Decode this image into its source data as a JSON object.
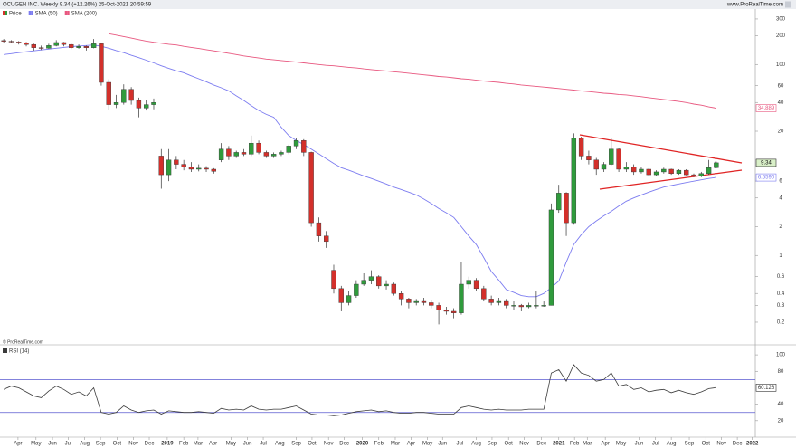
{
  "chart_data": {
    "type": "candlestick",
    "title": "OCUGEN INC. Weekly 9.34 (+12.26%) 25-Oct-2021 20:59:59",
    "source": "www.ProRealTime.com",
    "copyright": "© ProRealTime.com",
    "log_scale": true,
    "grid": false,
    "xlim": [
      -0.5,
      100.2
    ],
    "xticks": [
      {
        "value": 1.9,
        "label": "Apr"
      },
      {
        "value": 4.3,
        "label": "May"
      },
      {
        "value": 6.5,
        "label": "Jun"
      },
      {
        "value": 8.6,
        "label": "Jul"
      },
      {
        "value": 10.8,
        "label": "Aug"
      },
      {
        "value": 12.9,
        "label": "Sep"
      },
      {
        "value": 15.1,
        "label": "Oct"
      },
      {
        "value": 17.3,
        "label": "Nov"
      },
      {
        "value": 19.4,
        "label": "Dec"
      },
      {
        "value": 21.8,
        "label": "2019"
      },
      {
        "value": 24.0,
        "label": "Feb"
      },
      {
        "value": 25.9,
        "label": "Mar"
      },
      {
        "value": 27.9,
        "label": "Apr"
      },
      {
        "value": 30.3,
        "label": "May"
      },
      {
        "value": 32.5,
        "label": "Jun"
      },
      {
        "value": 34.6,
        "label": "Jul"
      },
      {
        "value": 36.8,
        "label": "Aug"
      },
      {
        "value": 39.0,
        "label": "Sep"
      },
      {
        "value": 41.1,
        "label": "Oct"
      },
      {
        "value": 43.3,
        "label": "Nov"
      },
      {
        "value": 45.4,
        "label": "Dec"
      },
      {
        "value": 47.8,
        "label": "2020"
      },
      {
        "value": 50.0,
        "label": "Feb"
      },
      {
        "value": 52.2,
        "label": "Mar"
      },
      {
        "value": 54.3,
        "label": "Apr"
      },
      {
        "value": 56.5,
        "label": "May"
      },
      {
        "value": 58.5,
        "label": "Jun"
      },
      {
        "value": 60.8,
        "label": "Jul"
      },
      {
        "value": 63.0,
        "label": "Aug"
      },
      {
        "value": 65.1,
        "label": "Sep"
      },
      {
        "value": 67.3,
        "label": "Oct"
      },
      {
        "value": 69.4,
        "label": "Nov"
      },
      {
        "value": 71.7,
        "label": "Dec"
      },
      {
        "value": 74.0,
        "label": "2021"
      },
      {
        "value": 76.1,
        "label": "Feb"
      },
      {
        "value": 77.8,
        "label": "Mar"
      },
      {
        "value": 80.2,
        "label": "Apr"
      },
      {
        "value": 82.3,
        "label": "May"
      },
      {
        "value": 84.7,
        "label": "Jun"
      },
      {
        "value": 86.9,
        "label": "Jul"
      },
      {
        "value": 89.0,
        "label": "Aug"
      },
      {
        "value": 91.4,
        "label": "Sep"
      },
      {
        "value": 93.6,
        "label": "Oct"
      },
      {
        "value": 95.7,
        "label": "Nov"
      },
      {
        "value": 97.8,
        "label": "Dec"
      },
      {
        "value": 99.8,
        "label": "2022"
      }
    ],
    "ylim": [
      0.121,
      313
    ],
    "yticks": [
      300,
      200,
      100,
      60,
      40,
      20,
      6,
      4,
      2,
      1,
      0.6,
      0.4,
      0.3,
      0.2
    ],
    "candles": {
      "name": "Price",
      "up_color": "#2f9b3c",
      "down_color": "#d3302b",
      "open": [
        178,
        175,
        172,
        168,
        162,
        150,
        148,
        158,
        170,
        162,
        150,
        155,
        150,
        165,
        65,
        38,
        40,
        55,
        42,
        35,
        38,
        11,
        7,
        10,
        9,
        8.5,
        8,
        8.2,
        8,
        10,
        13,
        11,
        12,
        11.5,
        15,
        12,
        11,
        11.5,
        12,
        14,
        16,
        12,
        2.2,
        1.6,
        0.7,
        0.45,
        0.32,
        0.38,
        0.5,
        0.55,
        0.6,
        0.48,
        0.5,
        0.4,
        0.35,
        0.32,
        0.33,
        0.32,
        0.3,
        0.27,
        0.26,
        0.25,
        0.5,
        0.55,
        0.45,
        0.35,
        0.32,
        0.33,
        0.3,
        0.3,
        0.29,
        0.3,
        0.3,
        0.3,
        3.0,
        4.5,
        2.2,
        17,
        11,
        10,
        8,
        9,
        13,
        8,
        8.5,
        7.5,
        8,
        7,
        7.5,
        8,
        7.2,
        7.8,
        7,
        6.8,
        7.2,
        8.3
      ],
      "high": [
        185,
        180,
        176,
        172,
        165,
        158,
        165,
        180,
        172,
        165,
        162,
        158,
        185,
        170,
        70,
        48,
        62,
        58,
        45,
        42,
        44,
        13,
        13,
        11,
        10,
        9.5,
        9,
        8.6,
        8.2,
        15,
        14,
        12.5,
        13,
        18,
        16,
        12.5,
        12,
        12.5,
        14.5,
        17,
        16.5,
        12.2,
        2.5,
        1.8,
        0.8,
        0.48,
        0.42,
        0.55,
        0.65,
        0.7,
        0.62,
        0.55,
        0.52,
        0.42,
        0.36,
        0.35,
        0.36,
        0.34,
        0.32,
        0.29,
        0.28,
        0.85,
        0.6,
        0.58,
        0.48,
        0.38,
        0.36,
        0.35,
        0.33,
        0.31,
        0.32,
        0.42,
        0.33,
        3.5,
        5.5,
        4.6,
        19,
        17.5,
        12.5,
        10.5,
        9.5,
        17,
        13.5,
        9.5,
        9,
        8.5,
        8.2,
        7.8,
        8.3,
        8.1,
        8,
        8,
        7.2,
        7.5,
        10,
        9.6
      ],
      "low": [
        170,
        168,
        162,
        155,
        140,
        142,
        146,
        155,
        155,
        145,
        146,
        140,
        148,
        60,
        33,
        35,
        38,
        38,
        28,
        33,
        34,
        5,
        6,
        8,
        7.8,
        7.5,
        7.6,
        7.5,
        7.2,
        9.5,
        10,
        10.5,
        11,
        11,
        11.5,
        10.5,
        10.5,
        11,
        11.5,
        13,
        11,
        2,
        1.4,
        1.2,
        0.4,
        0.26,
        0.3,
        0.36,
        0.48,
        0.5,
        0.45,
        0.44,
        0.38,
        0.3,
        0.28,
        0.3,
        0.3,
        0.28,
        0.19,
        0.24,
        0.22,
        0.24,
        0.45,
        0.42,
        0.33,
        0.3,
        0.3,
        0.28,
        0.27,
        0.26,
        0.28,
        0.28,
        0.29,
        0.3,
        2.8,
        1.6,
        2.1,
        10,
        9,
        7,
        7.5,
        8.8,
        7.5,
        7.5,
        7,
        7.2,
        6.7,
        6.8,
        7.2,
        7,
        7,
        6.9,
        6.6,
        6.6,
        7,
        8.2
      ],
      "close": [
        175,
        172,
        168,
        162,
        150,
        148,
        158,
        170,
        162,
        150,
        155,
        150,
        165,
        65,
        38,
        40,
        55,
        42,
        35,
        38,
        40,
        7,
        10,
        9,
        8.5,
        8,
        8.2,
        8,
        7.6,
        13,
        11,
        12,
        11.5,
        15,
        12,
        11,
        11.5,
        12,
        14,
        16,
        12,
        2.2,
        1.6,
        1.4,
        0.45,
        0.32,
        0.38,
        0.5,
        0.55,
        0.6,
        0.48,
        0.5,
        0.4,
        0.35,
        0.32,
        0.33,
        0.32,
        0.3,
        0.27,
        0.26,
        0.25,
        0.5,
        0.55,
        0.45,
        0.35,
        0.32,
        0.33,
        0.3,
        0.3,
        0.29,
        0.3,
        0.3,
        0.3,
        3.0,
        4.5,
        2.2,
        17,
        11,
        10,
        8,
        9,
        13,
        8,
        8.5,
        7.5,
        8,
        7,
        7.5,
        8,
        7.2,
        7.8,
        7,
        6.8,
        7.2,
        8.3,
        9.34
      ]
    },
    "series": [
      {
        "name": "SMA (50)",
        "color": "#7c7cf0",
        "last_label": "6.5590",
        "values": [
          127,
          130,
          133,
          136,
          139,
          142,
          145,
          148,
          151,
          154,
          156,
          158,
          160,
          155,
          148,
          140,
          133,
          125,
          118,
          111,
          104,
          97,
          91,
          86,
          82,
          76,
          71,
          66,
          61,
          57,
          53,
          47,
          42,
          37,
          33,
          30,
          28,
          22,
          18,
          16,
          14.5,
          13,
          11.6,
          10.3,
          9.2,
          8.3,
          7.8,
          7.3,
          6.8,
          6.4,
          6,
          5.6,
          5.2,
          4.9,
          4.6,
          4.3,
          3.9,
          3.5,
          3.1,
          2.8,
          2.5,
          2.0,
          1.6,
          1.3,
          0.95,
          0.68,
          0.55,
          0.44,
          0.41,
          0.38,
          0.37,
          0.37,
          0.4,
          0.46,
          0.54,
          0.85,
          1.3,
          1.65,
          2,
          2.3,
          2.6,
          2.9,
          3.3,
          3.7,
          4.0,
          4.3,
          4.6,
          4.9,
          5.2,
          5.4,
          5.6,
          5.8,
          6.0,
          6.2,
          6.4,
          6.559
        ]
      },
      {
        "name": "SMA (200)",
        "color": "#e8577f",
        "values": [
          null,
          null,
          null,
          null,
          null,
          null,
          null,
          null,
          null,
          null,
          null,
          null,
          null,
          null,
          210,
          203,
          196,
          189,
          182,
          176,
          171,
          167,
          163,
          160,
          155,
          151,
          147,
          143,
          139,
          135,
          131,
          127,
          123,
          120,
          117,
          114,
          112,
          110,
          108,
          106,
          104,
          102,
          100,
          98,
          97,
          95,
          93.5,
          92,
          90,
          88.5,
          87,
          85.5,
          84,
          82.5,
          81,
          79.5,
          78,
          76.5,
          75,
          74,
          72.5,
          71,
          70,
          68.5,
          67,
          66,
          65,
          63.5,
          62.5,
          61,
          60,
          59,
          58,
          57,
          56,
          55,
          54,
          53,
          52,
          51,
          50,
          49.5,
          48.5,
          48,
          47,
          46,
          45,
          44,
          43,
          42,
          41,
          40,
          38.5,
          37.5,
          36,
          34.889
        ]
      }
    ],
    "indicator": {
      "name": "RSI (14)",
      "color": "#3a3a3a",
      "level_color": "#5a5ad0",
      "ylim": [
        0,
        110
      ],
      "yticks": [
        20,
        40,
        80,
        100
      ],
      "levels": [
        70,
        30
      ],
      "values": [
        58,
        62,
        60,
        55,
        50,
        48,
        56,
        62,
        58,
        52,
        55,
        50,
        60,
        30,
        28,
        30,
        38,
        33,
        30,
        32,
        33,
        28,
        32,
        31,
        30,
        30,
        31,
        30,
        29,
        35,
        33,
        34,
        33,
        38,
        34,
        33,
        34,
        34,
        36,
        38,
        33,
        28,
        27,
        27,
        26,
        27,
        29,
        31,
        32,
        33,
        31,
        32,
        30,
        29,
        29,
        30,
        30,
        29,
        28,
        28,
        28,
        36,
        38,
        36,
        34,
        33,
        34,
        33,
        33,
        33,
        34,
        34,
        34,
        78,
        82,
        68,
        88,
        78,
        75,
        68,
        70,
        78,
        62,
        64,
        58,
        60,
        55,
        57,
        58,
        54,
        57,
        54,
        52,
        55,
        59,
        60.126
      ]
    }
  }
}
